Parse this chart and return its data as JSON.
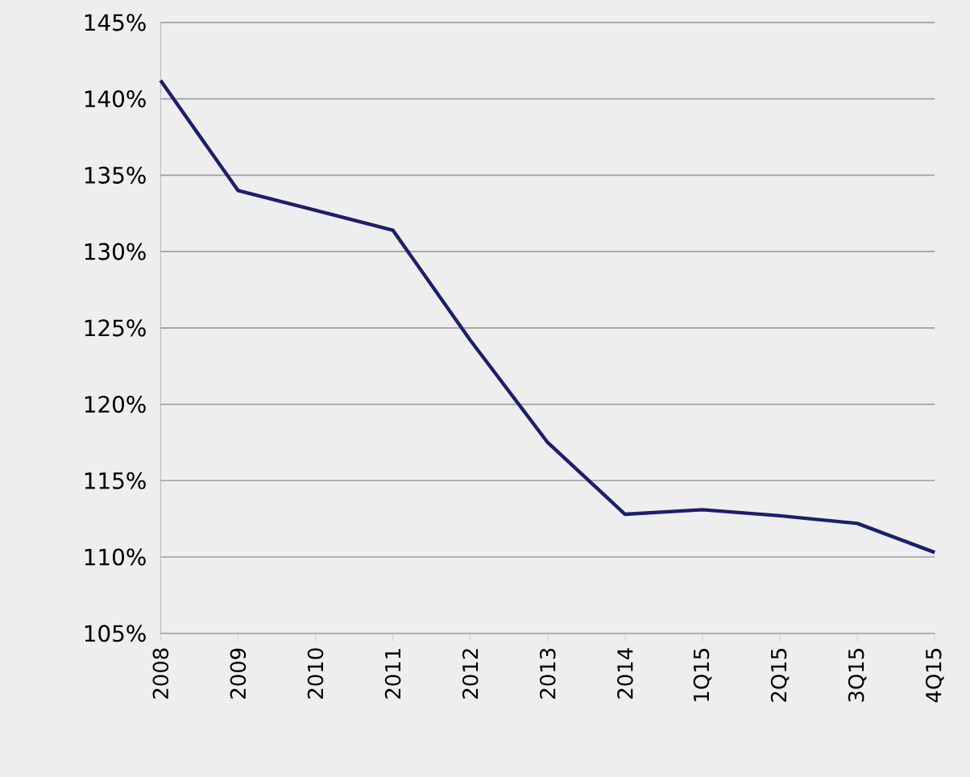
{
  "chart_data": {
    "type": "line",
    "categories": [
      "2008",
      "2009",
      "2010",
      "2011",
      "2012",
      "2013",
      "2014",
      "1Q15",
      "2Q15",
      "3Q15",
      "4Q15"
    ],
    "series": [
      {
        "color": "#1c1f6b",
        "values": [
          141.2,
          134.0,
          132.7,
          131.4,
          124.2,
          117.5,
          112.8,
          113.1,
          112.7,
          112.2,
          110.3
        ]
      }
    ],
    "ylim": [
      105,
      145
    ],
    "yticks": [
      {
        "value": 105,
        "label": "105%"
      },
      {
        "value": 110,
        "label": "110%"
      },
      {
        "value": 115,
        "label": "115%"
      },
      {
        "value": 120,
        "label": "120%"
      },
      {
        "value": 125,
        "label": "125%"
      },
      {
        "value": 130,
        "label": "130%"
      },
      {
        "value": 135,
        "label": "135%"
      },
      {
        "value": 140,
        "label": "140%"
      },
      {
        "value": 145,
        "label": "145%"
      }
    ],
    "grid": "y",
    "marker": "none",
    "line_style": "solid"
  }
}
